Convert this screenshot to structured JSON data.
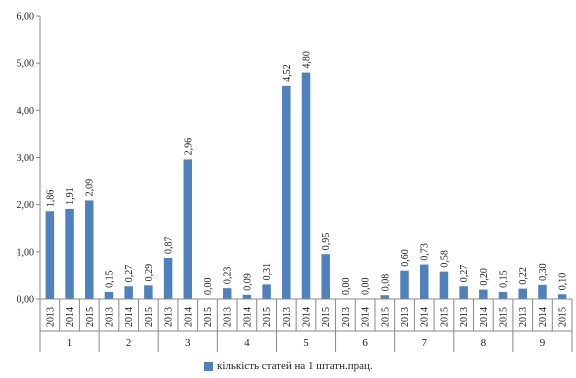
{
  "chart_data": {
    "type": "bar",
    "groups": [
      "1",
      "2",
      "3",
      "4",
      "5",
      "6",
      "7",
      "8",
      "9"
    ],
    "years": [
      "2013",
      "2014",
      "2015"
    ],
    "values": [
      [
        1.86,
        1.91,
        2.09
      ],
      [
        0.15,
        0.27,
        0.29
      ],
      [
        0.87,
        2.96,
        0.0
      ],
      [
        0.23,
        0.09,
        0.31
      ],
      [
        4.52,
        4.8,
        0.95
      ],
      [
        0.0,
        0.0,
        0.08
      ],
      [
        0.6,
        0.73,
        0.58
      ],
      [
        0.27,
        0.2,
        0.15
      ],
      [
        0.22,
        0.3,
        0.1
      ]
    ],
    "value_labels": [
      [
        "1,86",
        "1,91",
        "2,09"
      ],
      [
        "0,15",
        "0,27",
        "0,29"
      ],
      [
        "0,87",
        "2,96",
        "0,00"
      ],
      [
        "0,23",
        "0,09",
        "0,31"
      ],
      [
        "4,52",
        "4,80",
        "0,95"
      ],
      [
        "0,00",
        "0,00",
        "0,08"
      ],
      [
        "0,60",
        "0,73",
        "0,58"
      ],
      [
        "0,27",
        "0,20",
        "0,15"
      ],
      [
        "0,22",
        "0,30",
        "0,10"
      ]
    ],
    "y_ticks": [
      "0,00",
      "1,00",
      "2,00",
      "3,00",
      "4,00",
      "5,00",
      "6,00"
    ],
    "ylim": [
      0,
      6
    ],
    "grid": false,
    "legend_position": "bottom",
    "series": [
      {
        "name": "кількість статей на 1 штатн.прац.",
        "color": "#4f81bd"
      }
    ]
  }
}
